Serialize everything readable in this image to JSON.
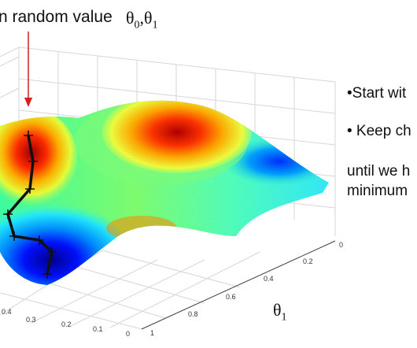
{
  "caption": {
    "text": "n random value",
    "theta_main": "θ",
    "sub0": "0",
    "sep": ",θ",
    "sub1": "1"
  },
  "bullets": {
    "start": "•Start wit",
    "keep": "• Keep ch",
    "until_line1": "until we h",
    "until_line2": "minimum"
  },
  "axis": {
    "theta1_main": "θ",
    "theta1_sub": "1",
    "right_ticks": [
      "0",
      "0.2",
      "0.4",
      "0.6",
      "0.8",
      "1"
    ],
    "bottom_ticks": [
      "0.4",
      "0.3",
      "0.2",
      "0.1",
      "0"
    ]
  },
  "colors": {
    "arrow": "#d42020",
    "path": "#111111",
    "grid": "#d6d6d6"
  }
}
